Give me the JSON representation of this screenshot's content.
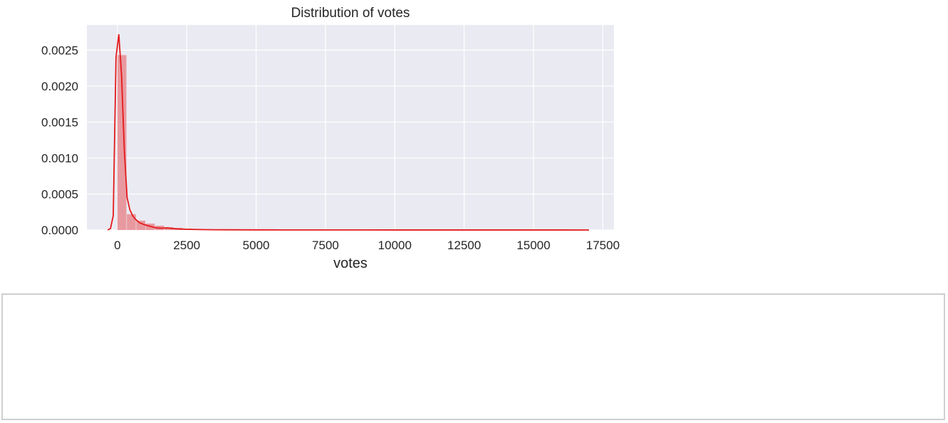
{
  "chart_data": {
    "type": "histogram",
    "title": "Distribution of votes",
    "xlabel": "votes",
    "ylabel": "",
    "xlim": [
      -1100,
      17900
    ],
    "ylim": [
      0,
      0.00285
    ],
    "grid": true,
    "colors": {
      "background": "#eaeaf2",
      "grid": "#ffffff",
      "bar": "#e8959a",
      "kde": "#e31a1c"
    },
    "x_ticks": [
      "0",
      "2500",
      "5000",
      "7500",
      "10000",
      "12500",
      "15000",
      "17500"
    ],
    "x_tick_values": [
      0,
      2500,
      5000,
      7500,
      10000,
      12500,
      15000,
      17500
    ],
    "y_ticks": [
      "0.0000",
      "0.0005",
      "0.0010",
      "0.0015",
      "0.0020",
      "0.0025"
    ],
    "y_tick_values": [
      0,
      0.0005,
      0.001,
      0.0015,
      0.002,
      0.0025
    ],
    "bins": {
      "edges_start": 0,
      "bin_width": 340,
      "values": [
        0.00243,
        0.00022,
        0.00013,
        9e-05,
        6e-05,
        4e-05,
        3e-05,
        2e-05,
        1.5e-05,
        1e-05,
        8e-06,
        6e-06,
        5e-06,
        4e-06,
        3e-06,
        3e-06,
        2e-06,
        2e-06,
        1.5e-06,
        1.5e-06,
        1e-06,
        1e-06,
        1e-06,
        8e-07,
        8e-07,
        6e-07,
        6e-07,
        5e-07,
        5e-07,
        4e-07,
        4e-07,
        4e-07,
        3e-07,
        3e-07,
        3e-07,
        2e-07,
        2e-07,
        2e-07,
        2e-07,
        2e-07,
        1e-07,
        1e-07,
        1e-07,
        1e-07,
        1e-07,
        1e-07,
        1e-07,
        1e-07,
        1e-07,
        1e-07
      ]
    },
    "kde": {
      "x": [
        -350,
        -250,
        -150,
        -50,
        50,
        150,
        250,
        350,
        450,
        550,
        650,
        800,
        1000,
        1200,
        1400,
        1600,
        1800,
        2000,
        2200,
        2500,
        3000,
        3500,
        4000,
        5000,
        6000,
        8000,
        10000,
        12000,
        14000,
        16000,
        17000
      ],
      "y": [
        0.0,
        2e-05,
        0.0002,
        0.0024,
        0.00272,
        0.00215,
        0.0011,
        0.00045,
        0.00028,
        0.0002,
        0.00015,
        0.0001,
        7e-05,
        5e-05,
        3e-05,
        2.5e-05,
        3e-05,
        2e-05,
        1.5e-05,
        1e-05,
        6e-06,
        4e-06,
        3e-06,
        2e-06,
        1.5e-06,
        1e-06,
        8e-07,
        6e-07,
        5e-07,
        4e-07,
        3e-07
      ]
    }
  }
}
